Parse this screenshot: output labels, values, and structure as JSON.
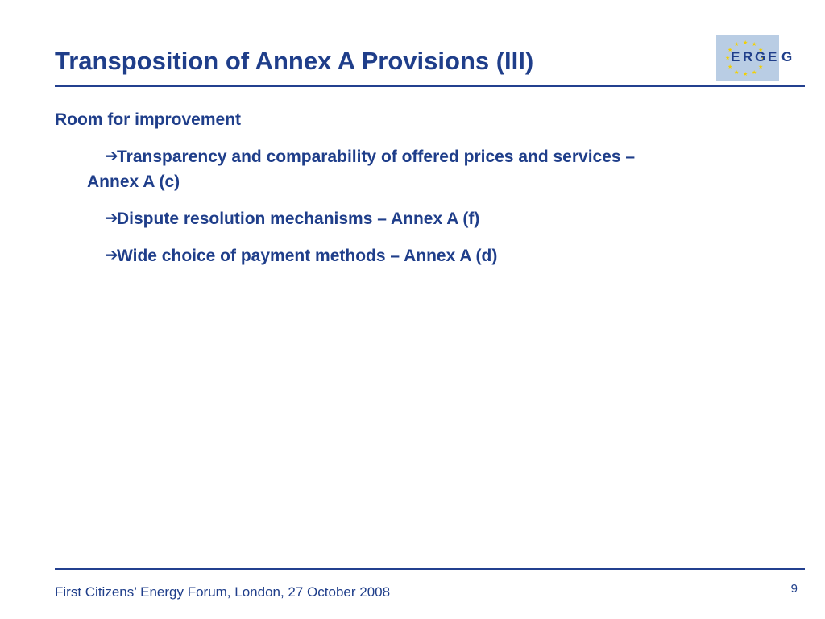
{
  "slide": {
    "title": "Transposition of Annex A Provisions (III)"
  },
  "logo": {
    "letters": [
      "E",
      "R",
      "G",
      "E",
      "G"
    ],
    "colors": {
      "dark_blue": "#1f3e8a",
      "light_blue": "#b9cde4",
      "star_yellow": "#f2d000",
      "logo_light": "#5b8fd0"
    }
  },
  "content": {
    "heading": "Room for improvement",
    "bullets": [
      {
        "icon": "arrow-right-icon",
        "line1": "Transparency and comparability of offered prices and services –",
        "line2": "Annex A (c)"
      },
      {
        "icon": "arrow-right-icon",
        "line1": "Dispute resolution mechanisms – Annex A (f)"
      },
      {
        "icon": "arrow-right-icon",
        "line1": "Wide choice of payment methods – Annex A (d)"
      }
    ]
  },
  "footer": {
    "text": "First Citizens’ Energy Forum, London, 27 October 2008",
    "page_number": "9"
  },
  "theme": {
    "text_color": "#1f3e8a",
    "rule_color": "#23408f"
  }
}
